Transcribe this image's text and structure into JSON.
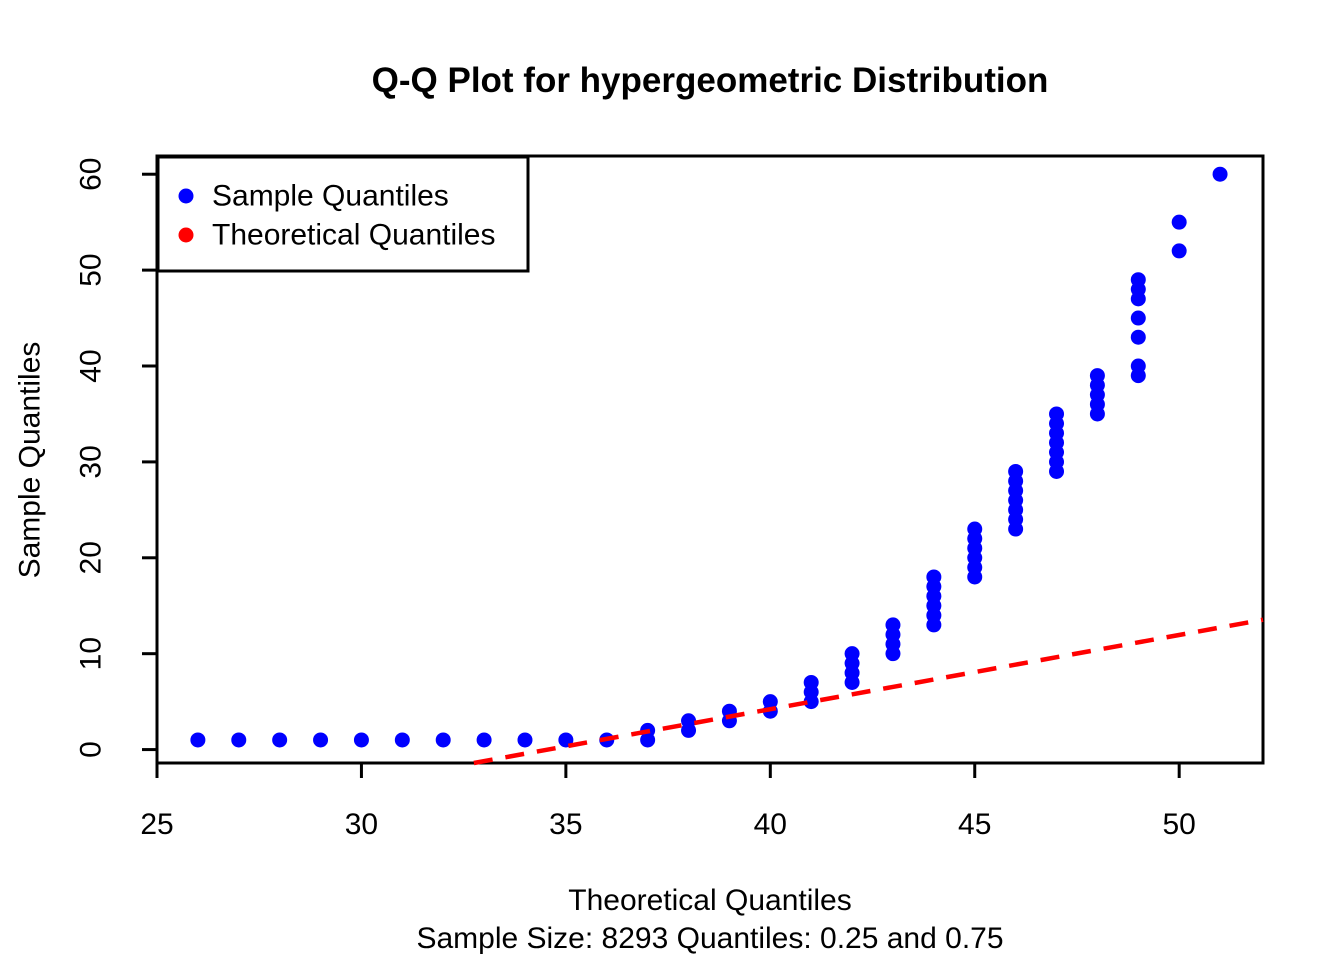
{
  "figure": {
    "background": "#FFFFFF",
    "point_color": "#0000FF",
    "line_color": "#FF0000",
    "axis_color": "#000000"
  },
  "chart_data": {
    "type": "scatter",
    "title": "Q-Q Plot for hypergeometric Distribution",
    "xlabel": "Theoretical Quantiles",
    "xlabel_line2": "Sample Size: 8293 Quantiles: 0.25 and 0.75",
    "ylabel": "Sample Quantiles",
    "xlim": [
      25,
      52.05
    ],
    "ylim": [
      -1.4,
      61.9
    ],
    "x_ticks": [
      25,
      30,
      35,
      40,
      45,
      50
    ],
    "y_ticks": [
      0,
      10,
      20,
      30,
      40,
      50,
      60
    ],
    "grid": false,
    "legend": {
      "position": "top-left",
      "entries": [
        {
          "label": "Sample Quantiles",
          "color": "#0000FF",
          "marker": "dot"
        },
        {
          "label": "Theoretical Quantiles",
          "color": "#FF0000",
          "marker": "dot"
        }
      ]
    },
    "series": [
      {
        "name": "Sample Quantiles",
        "type": "points",
        "color": "#0000FF",
        "points": [
          [
            26,
            1
          ],
          [
            27,
            1
          ],
          [
            28,
            1
          ],
          [
            29,
            1
          ],
          [
            30,
            1
          ],
          [
            31,
            1
          ],
          [
            32,
            1
          ],
          [
            33,
            1
          ],
          [
            34,
            1
          ],
          [
            35,
            1
          ],
          [
            36,
            1
          ],
          [
            37,
            1
          ],
          [
            37,
            2
          ],
          [
            38,
            2
          ],
          [
            38,
            3
          ],
          [
            39,
            3
          ],
          [
            39,
            4
          ],
          [
            40,
            4
          ],
          [
            40,
            5
          ],
          [
            41,
            5
          ],
          [
            41,
            6
          ],
          [
            41,
            7
          ],
          [
            42,
            7
          ],
          [
            42,
            8
          ],
          [
            42,
            9
          ],
          [
            42,
            10
          ],
          [
            43,
            10
          ],
          [
            43,
            11
          ],
          [
            43,
            12
          ],
          [
            43,
            13
          ],
          [
            44,
            13
          ],
          [
            44,
            14
          ],
          [
            44,
            15
          ],
          [
            44,
            16
          ],
          [
            44,
            17
          ],
          [
            44,
            18
          ],
          [
            45,
            18
          ],
          [
            45,
            19
          ],
          [
            45,
            20
          ],
          [
            45,
            21
          ],
          [
            45,
            22
          ],
          [
            45,
            23
          ],
          [
            46,
            23
          ],
          [
            46,
            24
          ],
          [
            46,
            25
          ],
          [
            46,
            26
          ],
          [
            46,
            27
          ],
          [
            46,
            28
          ],
          [
            46,
            29
          ],
          [
            47,
            29
          ],
          [
            47,
            30
          ],
          [
            47,
            31
          ],
          [
            47,
            32
          ],
          [
            47,
            33
          ],
          [
            47,
            34
          ],
          [
            47,
            35
          ],
          [
            48,
            35
          ],
          [
            48,
            36
          ],
          [
            48,
            37
          ],
          [
            48,
            38
          ],
          [
            48,
            39
          ],
          [
            49,
            39
          ],
          [
            49,
            40
          ],
          [
            49,
            43
          ],
          [
            49,
            45
          ],
          [
            49,
            47
          ],
          [
            49,
            48
          ],
          [
            49,
            49
          ],
          [
            50,
            52
          ],
          [
            50,
            55
          ],
          [
            51,
            60
          ]
        ]
      },
      {
        "name": "Theoretical Quantiles",
        "type": "dashed-line",
        "color": "#FF0000",
        "line": {
          "x1": 32.75,
          "y1": -1.4,
          "x2": 52.05,
          "y2": 13.54
        }
      }
    ]
  }
}
